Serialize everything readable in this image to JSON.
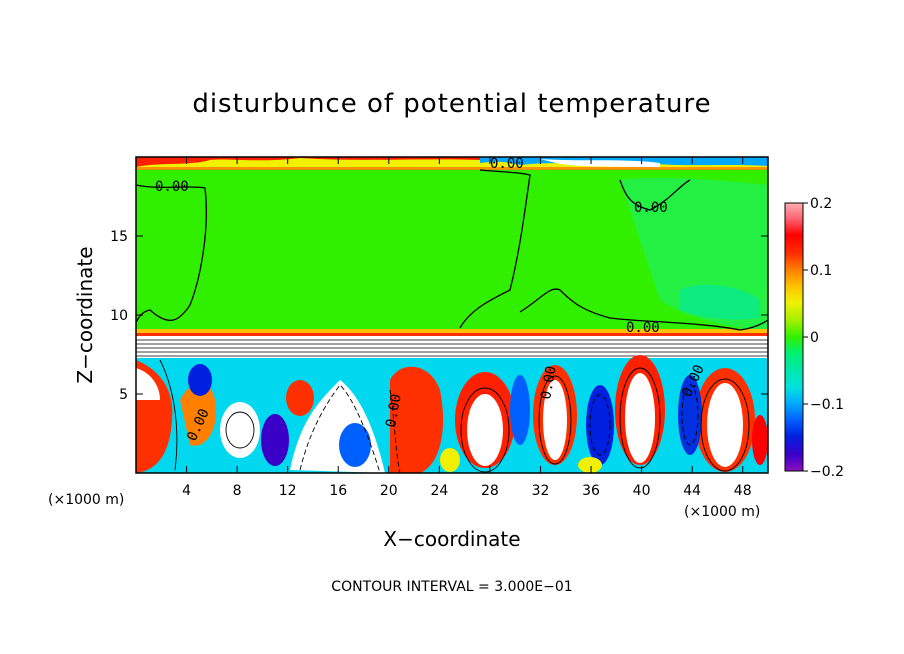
{
  "chart_data": {
    "type": "heatmap",
    "title": "disturbunce of potential temperature",
    "xlabel": "X−coordinate",
    "ylabel": "Z−coordinate",
    "xunit": "(×1000 m)",
    "xunit_right": "(×1000 m)",
    "xlim": [
      0,
      50
    ],
    "ylim": [
      0,
      20
    ],
    "xticks": [
      4,
      8,
      12,
      16,
      20,
      24,
      28,
      32,
      36,
      40,
      44,
      48
    ],
    "xtick_labels": [
      "4",
      "8",
      "12",
      "16",
      "20",
      "24",
      "28",
      "32",
      "36",
      "40",
      "44",
      "48"
    ],
    "yticks": [
      5,
      10,
      15
    ],
    "ytick_labels": [
      "5",
      "10",
      "15"
    ],
    "colorbar": {
      "min": -0.2,
      "max": 0.2,
      "ticks": [
        0.2,
        0.1,
        0,
        -0.1,
        -0.2
      ],
      "tick_labels": [
        "0.2",
        "0.1",
        "0",
        "−0.1",
        "−0.2"
      ],
      "colors": [
        "#8c10c0",
        "#3a00c8",
        "#0020e0",
        "#0060ff",
        "#00a8ff",
        "#00e0e0",
        "#00e8a8",
        "#00f070",
        "#30f000",
        "#a0f000",
        "#f0f000",
        "#ffc000",
        "#ff8000",
        "#ff3000",
        "#ff0000",
        "#ff6070",
        "#ffb0b0"
      ]
    },
    "contour_labels": [
      "0.00",
      "0.00",
      "0.00",
      "0.00",
      "0.00",
      "0.00",
      "0.00",
      "0.00"
    ],
    "fields": {
      "upper_background": 0.0,
      "upper_right_region": -0.02,
      "top_strip": 0.12
    },
    "footer": "CONTOUR INTERVAL = 3.000E−01"
  }
}
